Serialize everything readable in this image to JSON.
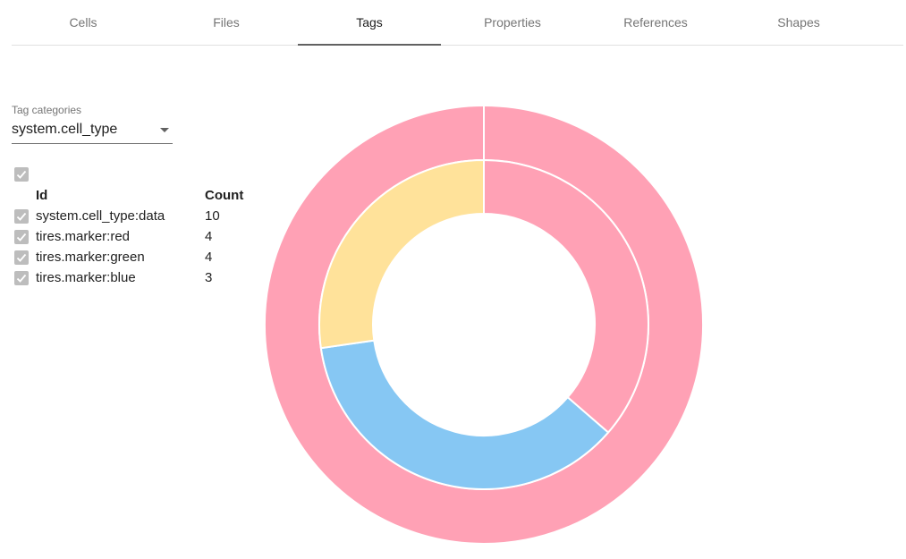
{
  "tabs": [
    "Cells",
    "Files",
    "Tags",
    "Properties",
    "References",
    "Shapes"
  ],
  "active_tab": "Tags",
  "tag_categories": {
    "label": "Tag categories",
    "value": "system.cell_type"
  },
  "table": {
    "headers": {
      "id": "Id",
      "count": "Count"
    },
    "rows": [
      {
        "id": "system.cell_type:data",
        "count": 10
      },
      {
        "id": "tires.marker:red",
        "count": 4
      },
      {
        "id": "tires.marker:green",
        "count": 4
      },
      {
        "id": "tires.marker:blue",
        "count": 3
      }
    ]
  },
  "chart_data": {
    "type": "doughnut",
    "series": [
      {
        "values": [
          10
        ],
        "colors": [
          "#ffa1b5"
        ]
      },
      {
        "values": [
          4,
          4,
          3
        ],
        "colors": [
          "#ffa1b5",
          "#86c7f3",
          "#ffe29a"
        ]
      }
    ]
  }
}
